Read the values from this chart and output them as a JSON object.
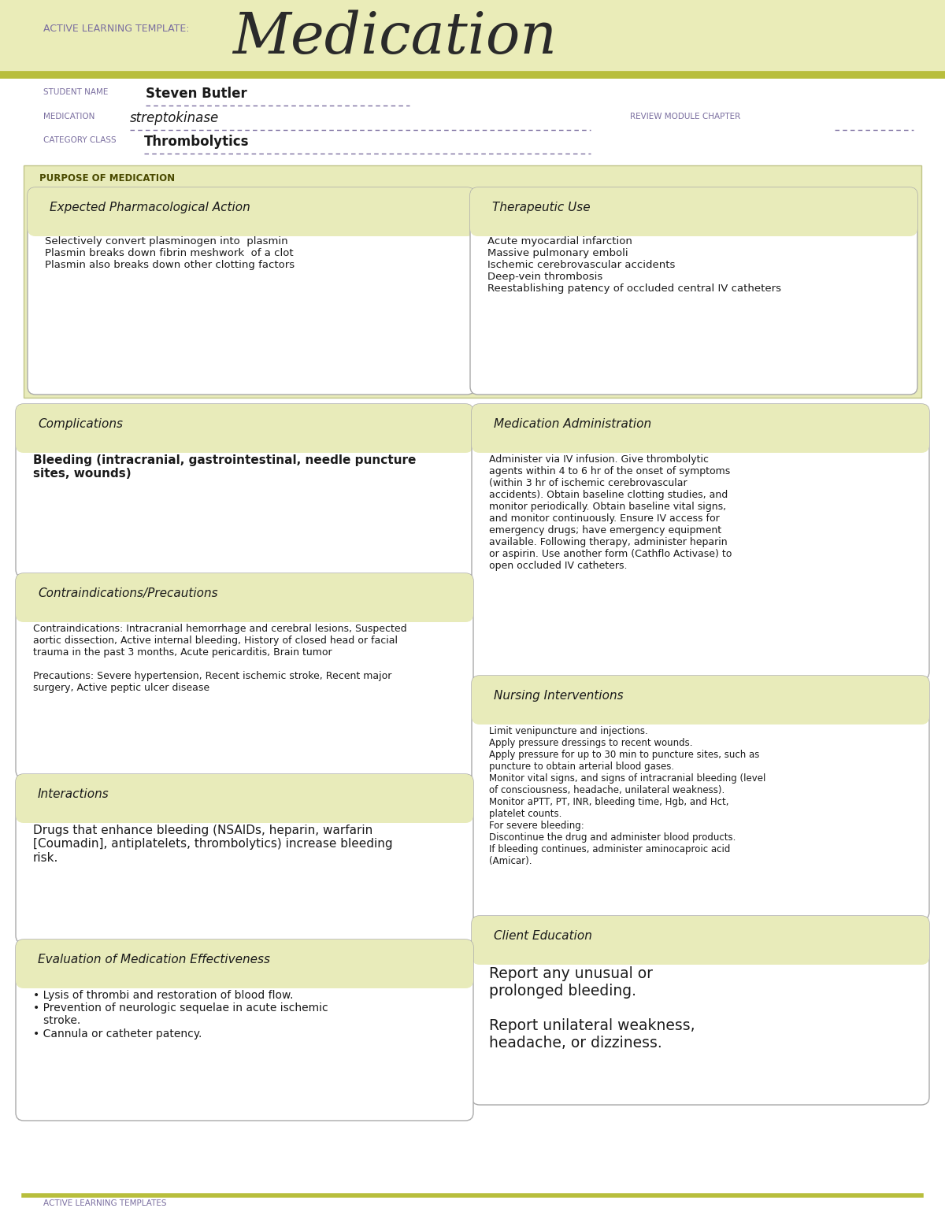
{
  "title_prefix": "ACTIVE LEARNING TEMPLATE:",
  "title_main": "Medication",
  "white_bg": "#ffffff",
  "header_bg": "#eaecb8",
  "header_line_color": "#b8be3c",
  "box_bg": "#e8ebba",
  "border_color": "#aaaaaa",
  "purple_color": "#7b6fa0",
  "dark_text": "#1a1a1a",
  "purpose_bg": "#e8ebba",
  "student_name": "Steven Butler",
  "medication": "streptokinase",
  "category_class": "Thrombolytics",
  "purpose_label": "PURPOSE OF MEDICATION",
  "section1_title": "Expected Pharmacological Action",
  "section1_body": "Selectively convert plasminogen into  plasmin\nPlasmin breaks down fibrin meshwork  of a clot\nPlasmin also breaks down other clotting factors",
  "section2_title": "Therapeutic Use",
  "section2_body": "Acute myocardial infarction\nMassive pulmonary emboli\nIschemic cerebrovascular accidents\nDeep-vein thrombosis\nReestablishing patency of occluded central IV catheters",
  "section3_title": "Complications",
  "section3_body": "Bleeding (intracranial, gastrointestinal, needle puncture\nsites, wounds)",
  "section4_title": "Medication Administration",
  "section4_body": "Administer via IV infusion. Give thrombolytic\nagents within 4 to 6 hr of the onset of symptoms\n(within 3 hr of ischemic cerebrovascular\naccidents). Obtain baseline clotting studies, and\nmonitor periodically. Obtain baseline vital signs,\nand monitor continuously. Ensure IV access for\nemergency drugs; have emergency equipment\navailable. Following therapy, administer heparin\nor aspirin. Use another form (Cathflo Activase) to\nopen occluded IV catheters.",
  "section5_title": "Contraindications/Precautions",
  "section5_body": "Contraindications: Intracranial hemorrhage and cerebral lesions, Suspected\naortic dissection, Active internal bleeding, History of closed head or facial\ntrauma in the past 3 months, Acute pericarditis, Brain tumor\n\nPrecautions: Severe hypertension, Recent ischemic stroke, Recent major\nsurgery, Active peptic ulcer disease",
  "section6_title": "Nursing Interventions",
  "section6_body": "Limit venipuncture and injections.\nApply pressure dressings to recent wounds.\nApply pressure for up to 30 min to puncture sites, such as\npuncture to obtain arterial blood gases.\nMonitor vital signs, and signs of intracranial bleeding (level\nof consciousness, headache, unilateral weakness).\nMonitor aPTT, PT, INR, bleeding time, Hgb, and Hct,\nplatelet counts.\nFor severe bleeding:\nDiscontinue the drug and administer blood products.\nIf bleeding continues, administer aminocaproic acid\n(Amicar).",
  "section7_title": "Interactions",
  "section7_body": "Drugs that enhance bleeding (NSAIDs, heparin, warfarin\n[Coumadin], antiplatelets, thrombolytics) increase bleeding\nrisk.",
  "section8_title": "Client Education",
  "section8_body": "Report any unusual or\nprolonged bleeding.\n\nReport unilateral weakness,\nheadache, or dizziness.",
  "section9_title": "Evaluation of Medication Effectiveness",
  "section9_body": "• Lysis of thrombi and restoration of blood flow.\n• Prevention of neurologic sequelae in acute ischemic\n   stroke.\n• Cannula or catheter patency.",
  "footer_text": "ACTIVE LEARNING TEMPLATES"
}
